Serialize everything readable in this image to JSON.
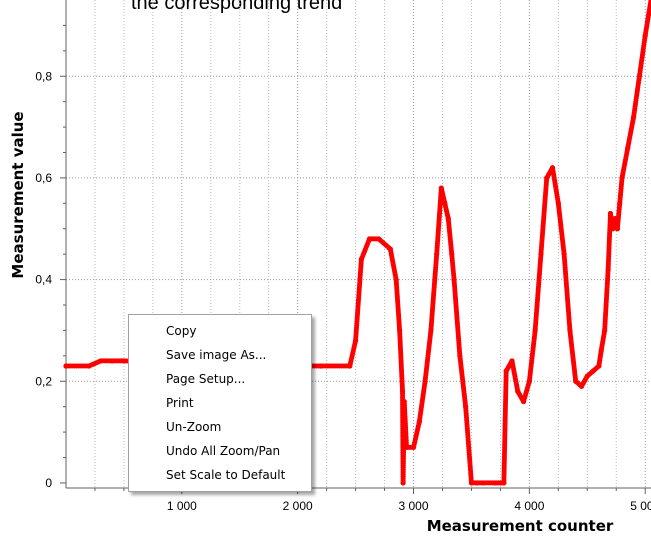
{
  "header_text": "the corresponding trend",
  "chart_data": {
    "type": "line",
    "xlabel": "Measurement counter",
    "ylabel": "Measurement value",
    "xlim": [
      0,
      5050
    ],
    "ylim": [
      -0.01,
      0.95
    ],
    "x_ticks": [
      1000,
      2000,
      3000,
      4000,
      5000
    ],
    "x_tick_labels": [
      "1 000",
      "2 000",
      "3 000",
      "4 000",
      "5 000"
    ],
    "y_ticks": [
      0,
      0.2,
      0.4,
      0.6,
      0.8
    ],
    "y_tick_labels": [
      "0",
      "0,2",
      "0,4",
      "0,6",
      "0,8"
    ],
    "grid": true,
    "marker_color": "#ff0000",
    "line_color": "#4a5cff",
    "series": [
      {
        "x": [
          0,
          200,
          300,
          400,
          500,
          2000,
          2200,
          2450,
          2500,
          2550,
          2620,
          2700,
          2800,
          2850,
          2880,
          2905,
          2910,
          2920,
          2940,
          3000,
          3050,
          3100,
          3150,
          3200,
          3240,
          3270,
          3300,
          3330,
          3350,
          3400,
          3450,
          3500,
          3550,
          3600,
          3700,
          3780,
          3800,
          3850,
          3900,
          3950,
          4000,
          4050,
          4100,
          4150,
          4200,
          4250,
          4300,
          4350,
          4400,
          4450,
          4500,
          4550,
          4600,
          4620,
          4650,
          4680,
          4700,
          4720,
          4740,
          4760,
          4780,
          4800,
          4850,
          4900,
          4950,
          5000,
          5050
        ],
        "y": [
          0.23,
          0.23,
          0.24,
          0.24,
          0.24,
          0.23,
          0.23,
          0.23,
          0.28,
          0.44,
          0.48,
          0.48,
          0.46,
          0.4,
          0.3,
          0.18,
          0.0,
          0.16,
          0.07,
          0.07,
          0.12,
          0.2,
          0.3,
          0.45,
          0.58,
          0.55,
          0.52,
          0.45,
          0.4,
          0.25,
          0.15,
          0.0,
          0.0,
          0.0,
          0.0,
          0.0,
          0.22,
          0.24,
          0.18,
          0.16,
          0.2,
          0.3,
          0.45,
          0.6,
          0.62,
          0.55,
          0.45,
          0.3,
          0.2,
          0.19,
          0.21,
          0.22,
          0.23,
          0.26,
          0.3,
          0.42,
          0.53,
          0.5,
          0.52,
          0.5,
          0.55,
          0.6,
          0.66,
          0.72,
          0.8,
          0.88,
          0.95
        ]
      }
    ]
  },
  "context_menu": {
    "items": [
      "Copy",
      "Save image As...",
      "Page Setup...",
      "Print",
      "Un-Zoom",
      "Undo All Zoom/Pan",
      "Set Scale to Default"
    ]
  }
}
